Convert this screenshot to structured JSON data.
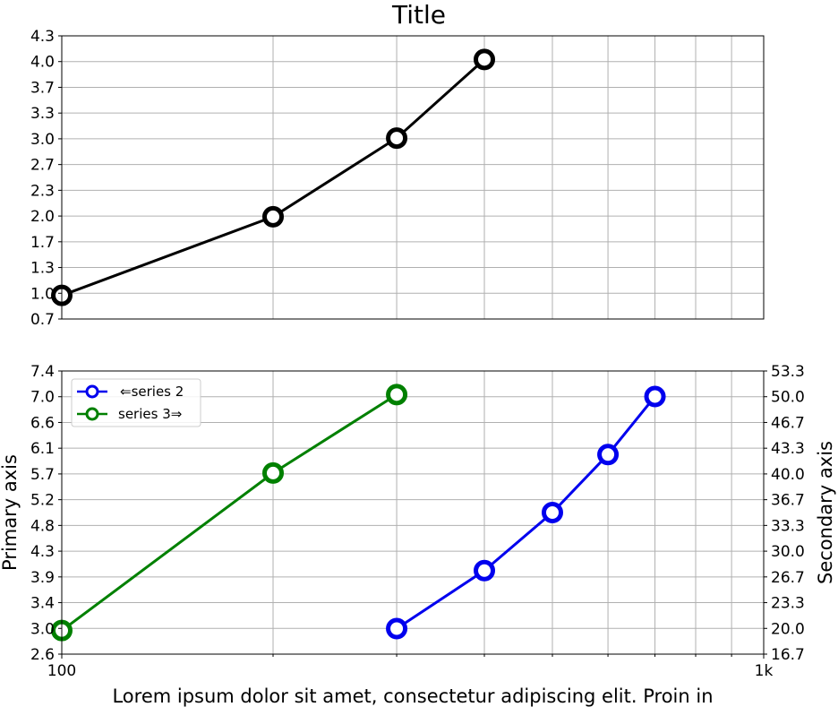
{
  "title": "Title",
  "xlabel": "Lorem ipsum dolor sit amet, consectetur adipiscing elit. Proin in",
  "chart_data": [
    {
      "type": "line",
      "title": "Title",
      "xscale": "log",
      "xlim": [
        100,
        1000
      ],
      "ylim": [
        0.7,
        4.3
      ],
      "yticks": [
        "0.7",
        "1.0",
        "1.3",
        "1.7",
        "2.0",
        "2.3",
        "2.7",
        "3.0",
        "3.3",
        "3.7",
        "4.0",
        "4.3"
      ],
      "grid": true,
      "series": [
        {
          "color": "#000000",
          "x": [
            100,
            200,
            300,
            400
          ],
          "y": [
            1,
            2,
            3,
            4
          ]
        }
      ]
    },
    {
      "type": "line",
      "xscale": "log",
      "xlim": [
        100,
        1000
      ],
      "xticks": [
        "100",
        "1k"
      ],
      "xlabel": "Lorem ipsum dolor sit amet, consectetur adipiscing elit. Proin in",
      "ylabel": "Primary axis",
      "ylabel_right": "Secondary axis",
      "ylim": [
        2.6,
        7.4
      ],
      "yticks": [
        "2.6",
        "3.0",
        "3.4",
        "3.9",
        "4.3",
        "4.8",
        "5.2",
        "5.7",
        "6.1",
        "6.6",
        "7.0",
        "7.4"
      ],
      "ylim_right": [
        16.7,
        53.3
      ],
      "yticks_right": [
        "16.7",
        "20.0",
        "23.3",
        "26.7",
        "30.0",
        "33.3",
        "36.7",
        "40.0",
        "43.3",
        "46.7",
        "50.0",
        "53.3"
      ],
      "grid": true,
      "legend": "top-left",
      "series": [
        {
          "name": "⇐series 2",
          "axis": "right",
          "color": "#0000ee",
          "x": [
            300,
            400,
            500,
            600,
            700
          ],
          "y": [
            20,
            27.5,
            35,
            42.5,
            50
          ]
        },
        {
          "name": "series 3⇒",
          "axis": "left",
          "color": "#008000",
          "x": [
            100,
            200,
            300
          ],
          "y": [
            3,
            5.67,
            7
          ]
        }
      ]
    }
  ]
}
